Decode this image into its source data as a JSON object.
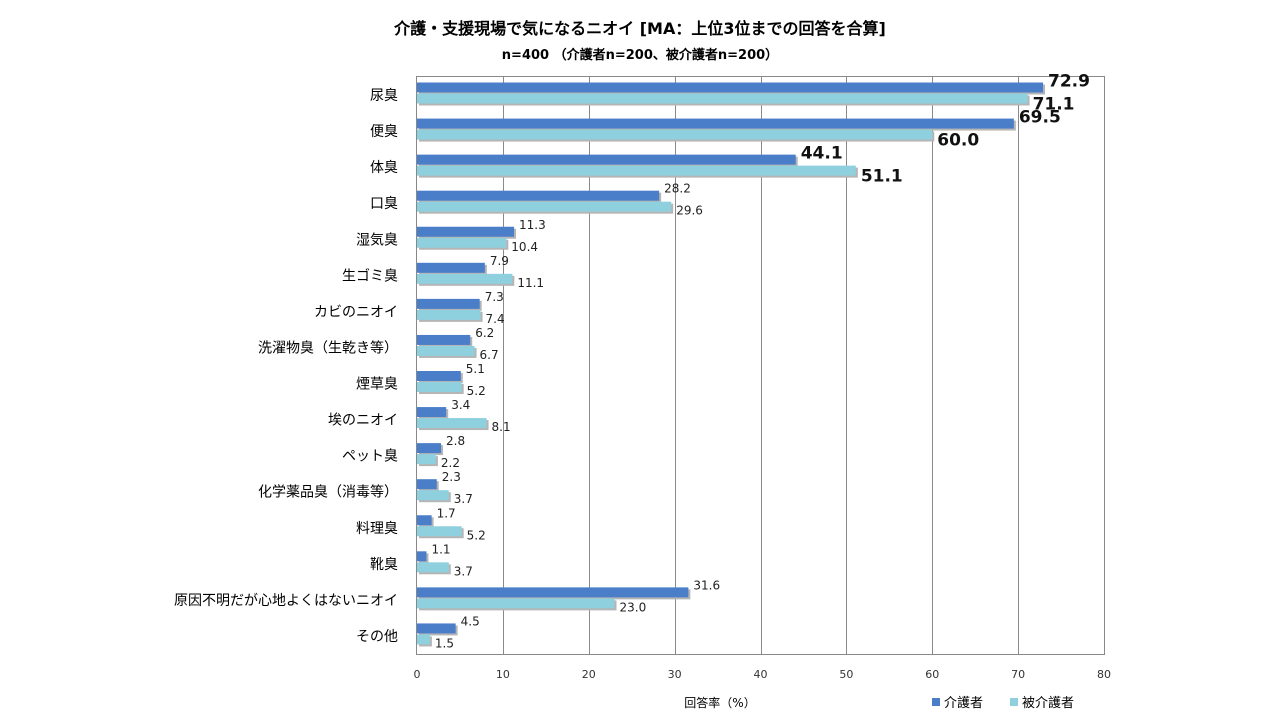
{
  "chart_data": {
    "type": "bar",
    "orientation": "horizontal",
    "title": "介護・支援現場で気になるニオイ [MA：上位3位までの回答を合算]",
    "subtitle": "n=400 （介護者n=200、被介護者n=200）",
    "xlabel": "回答率（%）",
    "ylabel": "",
    "xlim": [
      0,
      80
    ],
    "xticks": [
      0,
      10,
      20,
      30,
      40,
      50,
      60,
      70,
      80
    ],
    "grid": true,
    "legend_position": "bottom-right",
    "categories": [
      "尿臭",
      "便臭",
      "体臭",
      "口臭",
      "湿気臭",
      "生ゴミ臭",
      "カビのニオイ",
      "洗濯物臭（生乾き等）",
      "煙草臭",
      "埃のニオイ",
      "ペット臭",
      "化学薬品臭（消毒等）",
      "料理臭",
      "靴臭",
      "原因不明だが心地よくはないニオイ",
      "その他"
    ],
    "series": [
      {
        "name": "介護者",
        "color": "#4a7ec8",
        "values": [
          72.9,
          69.5,
          44.1,
          28.2,
          11.3,
          7.9,
          7.3,
          6.2,
          5.1,
          3.4,
          2.8,
          2.3,
          1.7,
          1.1,
          31.6,
          4.5
        ]
      },
      {
        "name": "被介護者",
        "color": "#8fd0de",
        "values": [
          71.1,
          60.0,
          51.1,
          29.6,
          10.4,
          11.1,
          7.4,
          6.7,
          5.2,
          8.1,
          2.2,
          3.7,
          5.2,
          3.7,
          23.0,
          1.5
        ]
      }
    ],
    "highlighted_labels": [
      "尿臭",
      "便臭",
      "体臭"
    ]
  }
}
